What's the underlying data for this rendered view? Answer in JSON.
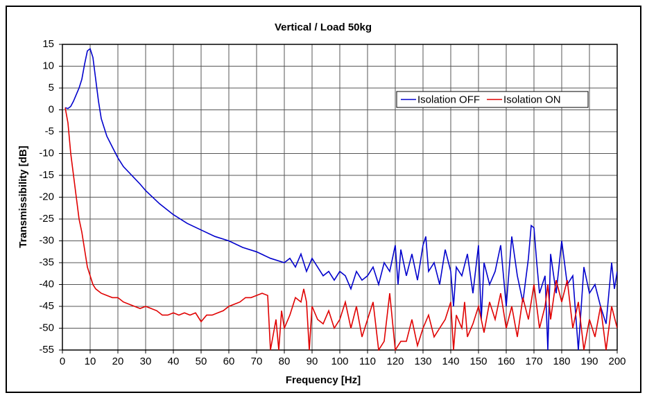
{
  "chart_data": {
    "type": "line",
    "title": "Vertical / Load 50kg",
    "x_label": "Frequency [Hz]",
    "y_label": "Transmissibility [dB]",
    "xlim": [
      0,
      200
    ],
    "ylim": [
      -55,
      15
    ],
    "xticks": [
      0,
      10,
      20,
      30,
      40,
      50,
      60,
      70,
      80,
      90,
      100,
      110,
      120,
      130,
      140,
      150,
      160,
      170,
      180,
      190,
      200
    ],
    "yticks": [
      15,
      10,
      5,
      0,
      -5,
      -10,
      -15,
      -20,
      -25,
      -30,
      -35,
      -40,
      -45,
      -50,
      -55
    ],
    "grid": true,
    "legend": "upper right",
    "series": [
      {
        "name": "Isolation OFF",
        "color": "#0000cc",
        "x": [
          1,
          2,
          3,
          4,
          5,
          6,
          7,
          8,
          9,
          10,
          11,
          12,
          13,
          14,
          15,
          16,
          18,
          20,
          22,
          25,
          28,
          30,
          35,
          40,
          45,
          50,
          55,
          60,
          65,
          70,
          75,
          80,
          82,
          84,
          86,
          88,
          90,
          92,
          94,
          96,
          98,
          100,
          102,
          104,
          106,
          108,
          110,
          112,
          114,
          116,
          118,
          120,
          121,
          122,
          124,
          126,
          128,
          130,
          131,
          132,
          134,
          136,
          138,
          140,
          141,
          142,
          144,
          146,
          148,
          150,
          151,
          152,
          154,
          156,
          158,
          160,
          162,
          164,
          166,
          168,
          169,
          170,
          171,
          172,
          174,
          175,
          176,
          178,
          180,
          182,
          184,
          186,
          188,
          190,
          192,
          194,
          196,
          198,
          199,
          200
        ],
        "values": [
          0.5,
          0.3,
          0.8,
          2,
          3.5,
          5,
          7,
          10.5,
          13.5,
          14,
          12,
          7,
          2,
          -2,
          -4,
          -6,
          -8.5,
          -11,
          -13,
          -15,
          -17,
          -18.5,
          -21.5,
          -24,
          -26,
          -27.5,
          -29,
          -30,
          -31.5,
          -32.5,
          -34,
          -35,
          -34,
          -36,
          -33,
          -37,
          -34,
          -36,
          -38,
          -37,
          -39,
          -37,
          -38,
          -41,
          -37,
          -39,
          -38,
          -36,
          -40,
          -35,
          -37,
          -31,
          -40,
          -32,
          -38,
          -33,
          -39,
          -31,
          -29,
          -37,
          -35,
          -40,
          -32,
          -37,
          -45,
          -36,
          -38,
          -33,
          -42,
          -31,
          -48,
          -35,
          -40,
          -37,
          -31,
          -45,
          -29,
          -38,
          -44,
          -34,
          -26.5,
          -27,
          -35,
          -42,
          -38,
          -55,
          -33,
          -42,
          -30,
          -40,
          -38,
          -55,
          -36,
          -42,
          -40,
          -45,
          -49,
          -35,
          -41,
          -37
        ]
      },
      {
        "name": "Isolation ON",
        "color": "#e00000",
        "x": [
          1,
          2,
          3,
          4,
          5,
          6,
          7,
          8,
          9,
          10,
          11,
          12,
          14,
          16,
          18,
          20,
          22,
          24,
          26,
          28,
          30,
          32,
          34,
          36,
          38,
          40,
          42,
          44,
          46,
          48,
          50,
          52,
          54,
          56,
          58,
          60,
          62,
          64,
          66,
          68,
          70,
          72,
          74,
          75,
          77,
          78,
          79,
          80,
          82,
          84,
          86,
          87,
          88,
          89,
          90,
          92,
          94,
          96,
          98,
          100,
          102,
          104,
          106,
          108,
          110,
          112,
          114,
          116,
          118,
          120,
          122,
          124,
          126,
          128,
          130,
          132,
          134,
          136,
          138,
          140,
          141,
          142,
          144,
          145,
          146,
          148,
          150,
          152,
          154,
          156,
          158,
          160,
          162,
          164,
          166,
          168,
          170,
          172,
          174,
          175,
          176,
          178,
          180,
          182,
          184,
          186,
          188,
          190,
          192,
          194,
          196,
          198,
          200
        ],
        "values": [
          0.5,
          -3,
          -10,
          -15,
          -20,
          -25,
          -28,
          -32,
          -36,
          -38,
          -40,
          -41,
          -42,
          -42.5,
          -43,
          -43,
          -44,
          -44.5,
          -45,
          -45.5,
          -45,
          -45.5,
          -46,
          -47,
          -47,
          -46.5,
          -47,
          -46.5,
          -47,
          -46.5,
          -48.5,
          -47,
          -47,
          -46.5,
          -46,
          -45,
          -44.5,
          -44,
          -43,
          -43,
          -42.5,
          -42,
          -42.5,
          -55,
          -48,
          -55,
          -46,
          -50,
          -47,
          -43,
          -44,
          -41,
          -44,
          -55,
          -45,
          -48,
          -49,
          -46,
          -50,
          -48,
          -44,
          -50,
          -45,
          -52,
          -48,
          -44,
          -55,
          -53,
          -42,
          -55,
          -53,
          -53,
          -48,
          -54,
          -50,
          -47,
          -52,
          -50,
          -48,
          -44,
          -55,
          -47,
          -50,
          -44,
          -52,
          -49,
          -45,
          -51,
          -44,
          -48,
          -42,
          -50,
          -45,
          -52,
          -43,
          -48,
          -40,
          -50,
          -45,
          -40,
          -48,
          -39,
          -44,
          -39,
          -50,
          -44,
          -55,
          -48,
          -52,
          -45,
          -55,
          -45,
          -50
        ]
      }
    ]
  }
}
